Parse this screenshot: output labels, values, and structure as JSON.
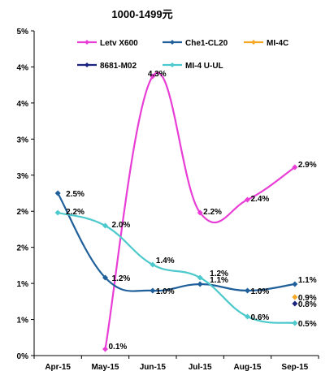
{
  "chart_data": {
    "type": "line",
    "title": "1000-1499元",
    "xlabel": "",
    "ylabel": "",
    "categories": [
      "Apr-15",
      "May-15",
      "Jun-15",
      "Jul-15",
      "Aug-15",
      "Sep-15"
    ],
    "y_tick_labels": [
      "0%",
      "1%",
      "1%",
      "2%",
      "2%",
      "3%",
      "3%",
      "4%",
      "4%",
      "5%"
    ],
    "ylim": [
      0,
      5
    ],
    "grid": false,
    "legend_position": "top",
    "series": [
      {
        "name": "Letv X600",
        "color": "#e83ed6",
        "values": [
          null,
          0.1,
          4.3,
          2.2,
          2.4,
          2.9
        ],
        "labels": [
          "",
          "0.1%",
          "4.3%",
          "2.2%",
          "2.4%",
          "2.9%"
        ]
      },
      {
        "name": "Che1-CL20",
        "color": "#1f5f9a",
        "values": [
          2.5,
          1.2,
          1.0,
          1.1,
          1.0,
          1.1
        ],
        "labels": [
          "2.5%",
          "1.2%",
          "1.0%",
          "1.1%",
          "1.0%",
          "1.1%"
        ]
      },
      {
        "name": "MI-4C",
        "color": "#f5a623",
        "values": [
          null,
          null,
          null,
          null,
          null,
          0.9
        ],
        "labels": [
          "",
          "",
          "",
          "",
          "",
          "0.9%"
        ]
      },
      {
        "name": "8681-M02",
        "color": "#1a237e",
        "values": [
          null,
          null,
          null,
          null,
          null,
          0.8
        ],
        "labels": [
          "",
          "",
          "",
          "",
          "",
          "0.8%"
        ]
      },
      {
        "name": "MI-4 U-UL",
        "color": "#4cc9cc",
        "values": [
          2.2,
          2.0,
          1.4,
          1.2,
          0.6,
          0.5
        ],
        "labels": [
          "2.2%",
          "2.0%",
          "1.4%",
          "1.2%",
          "0.6%",
          "0.5%"
        ]
      }
    ]
  }
}
